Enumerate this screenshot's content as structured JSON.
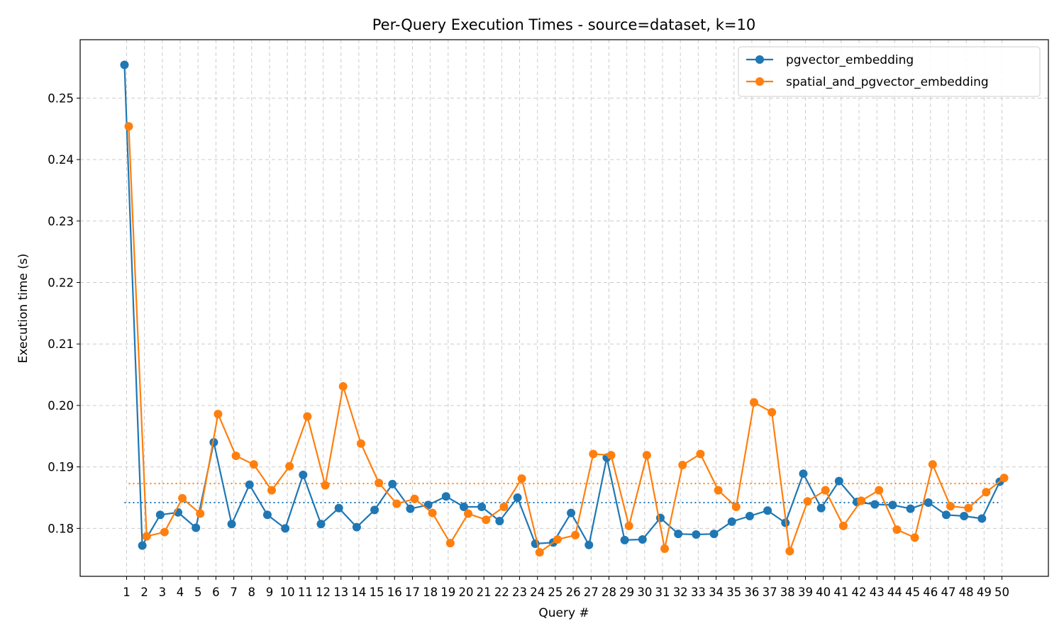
{
  "chart_data": {
    "type": "line",
    "title": "Per-Query Execution Times - source=dataset, k=10",
    "xlabel": "Query #",
    "ylabel": "Execution time (s)",
    "xlim": [
      -1.6,
      52.6
    ],
    "ylim": [
      0.1722,
      0.2595
    ],
    "y_ticks": [
      0.18,
      0.19,
      0.2,
      0.21,
      0.22,
      0.23,
      0.24,
      0.25
    ],
    "y_tick_labels": [
      "0.18",
      "0.19",
      "0.20",
      "0.21",
      "0.22",
      "0.23",
      "0.24",
      "0.25"
    ],
    "x": [
      1,
      2,
      3,
      4,
      5,
      6,
      7,
      8,
      9,
      10,
      11,
      12,
      13,
      14,
      15,
      16,
      17,
      18,
      19,
      20,
      21,
      22,
      23,
      24,
      25,
      26,
      27,
      28,
      29,
      30,
      31,
      32,
      33,
      34,
      35,
      36,
      37,
      38,
      39,
      40,
      41,
      42,
      43,
      44,
      45,
      46,
      47,
      48,
      49,
      50
    ],
    "x_tick_labels": [
      "1",
      "2",
      "3",
      "4",
      "5",
      "6",
      "7",
      "8",
      "9",
      "10",
      "11",
      "12",
      "13",
      "14",
      "15",
      "16",
      "17",
      "18",
      "19",
      "20",
      "21",
      "22",
      "23",
      "24",
      "25",
      "26",
      "27",
      "28",
      "29",
      "30",
      "31",
      "32",
      "33",
      "34",
      "35",
      "36",
      "37",
      "38",
      "39",
      "40",
      "41",
      "42",
      "43",
      "44",
      "45",
      "46",
      "47",
      "48",
      "49",
      "50"
    ],
    "grid": true,
    "legend_position": "top-right",
    "series": [
      {
        "name": "pgvector_embedding",
        "color": "#1f77b4",
        "mean": 0.1842,
        "values": [
          0.2554,
          0.1772,
          0.1822,
          0.1826,
          0.1801,
          0.194,
          0.1807,
          0.1871,
          0.1822,
          0.18,
          0.1887,
          0.1807,
          0.1833,
          0.1802,
          0.183,
          0.1872,
          0.1832,
          0.1838,
          0.1852,
          0.1835,
          0.1835,
          0.1812,
          0.185,
          0.1775,
          0.1777,
          0.1825,
          0.1773,
          0.1915,
          0.1781,
          0.1782,
          0.1817,
          0.1791,
          0.179,
          0.1791,
          0.1811,
          0.182,
          0.1829,
          0.1809,
          0.1889,
          0.1833,
          0.1877,
          0.1843,
          0.1839,
          0.1838,
          0.1832,
          0.1842,
          0.1822,
          0.182,
          0.1816,
          0.1876
        ]
      },
      {
        "name": "spatial_and_pgvector_embedding",
        "color": "#ff7f0e",
        "mean": 0.1873,
        "values": [
          0.2454,
          0.1787,
          0.1794,
          0.1849,
          0.1824,
          0.1986,
          0.1918,
          0.1904,
          0.1862,
          0.1901,
          0.1982,
          0.187,
          0.2031,
          0.1938,
          0.1874,
          0.184,
          0.1848,
          0.1825,
          0.1776,
          0.1824,
          0.1814,
          0.1835,
          0.1881,
          0.1761,
          0.1782,
          0.1789,
          0.1921,
          0.1919,
          0.1804,
          0.1919,
          0.1767,
          0.1903,
          0.1921,
          0.1862,
          0.1835,
          0.2005,
          0.1989,
          0.1763,
          0.1844,
          0.1862,
          0.1804,
          0.1845,
          0.1862,
          0.1798,
          0.1785,
          0.1904,
          0.1836,
          0.1833,
          0.1859,
          0.1882
        ]
      }
    ]
  }
}
